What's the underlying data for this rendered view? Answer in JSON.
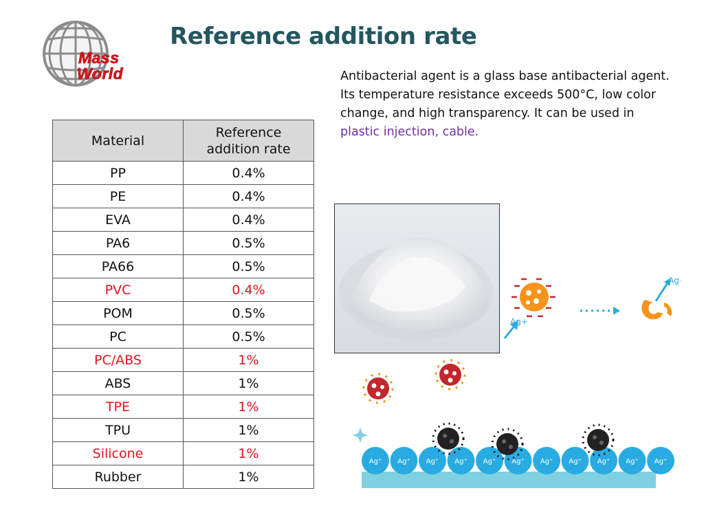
{
  "logo": {
    "line1": "Mass",
    "line2": "World"
  },
  "title": "Reference addition rate",
  "description": {
    "line1": "Antibacterial agent is a glass base antibacterial agent.",
    "line2": "Its temperature resistance exceeds 500°C, low color",
    "line3": "change, and high transparency. It can be used in",
    "highlight": "plastic injection, cable."
  },
  "table": {
    "header": {
      "col1": "Material",
      "col2_line1": "Reference",
      "col2_line2": "addition rate"
    },
    "rows": [
      {
        "material": "PP",
        "rate": "0.4%",
        "highlight": false
      },
      {
        "material": "PE",
        "rate": "0.4%",
        "highlight": false
      },
      {
        "material": "EVA",
        "rate": "0.4%",
        "highlight": false
      },
      {
        "material": "PA6",
        "rate": "0.5%",
        "highlight": false
      },
      {
        "material": "PA66",
        "rate": "0.5%",
        "highlight": false
      },
      {
        "material": "PVC",
        "rate": "0.4%",
        "highlight": true
      },
      {
        "material": "POM",
        "rate": "0.5%",
        "highlight": false
      },
      {
        "material": "PC",
        "rate": "0.5%",
        "highlight": false
      },
      {
        "material": "PC/ABS",
        "rate": "1%",
        "highlight": true
      },
      {
        "material": "ABS",
        "rate": "1%",
        "highlight": false
      },
      {
        "material": "TPE",
        "rate": "1%",
        "highlight": true
      },
      {
        "material": "TPU",
        "rate": "1%",
        "highlight": false
      },
      {
        "material": "Silicone",
        "rate": "1%",
        "highlight": true
      },
      {
        "material": "Rubber",
        "rate": "1%",
        "highlight": false
      }
    ]
  },
  "illustration": {
    "ion_label": "Ag+",
    "ion_label_small": "Ag⁺"
  },
  "colors": {
    "title": "#24565f",
    "highlight_text": "#7030a0",
    "red_text": "#e0141c",
    "logo_red": "#e8141c",
    "header_fill": "#d9d9d9",
    "ion_blue": "#29abe2",
    "substrate": "#7fd0e0",
    "bacteria_orange": "#f7941d",
    "virus_red": "#c1272d"
  }
}
